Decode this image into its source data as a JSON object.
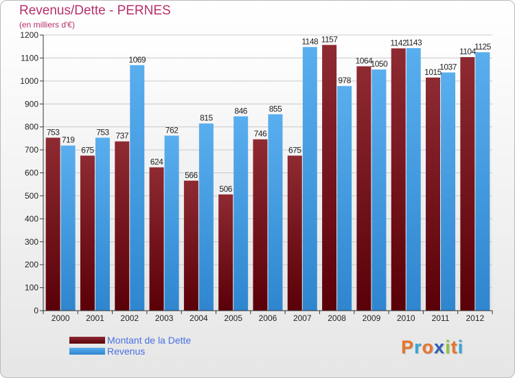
{
  "header": {
    "title": "Revenus/Dette - PERNES",
    "subtitle": "(en milliers d'€)"
  },
  "legend": {
    "items": [
      {
        "label": "Montant de la Dette",
        "color": "#6e0c12"
      },
      {
        "label": "Revenus",
        "color": "#4aa3e8"
      }
    ]
  },
  "logo": {
    "letters": [
      "P",
      "r",
      "o",
      "x",
      "i",
      "t",
      "i"
    ],
    "colors": [
      "#e8742b",
      "#33a7d8",
      "#e8742b",
      "#2d5fb8",
      "#8cc63f",
      "#e8742b",
      "#33a7d8"
    ]
  },
  "chart_data": {
    "type": "bar",
    "title": "Revenus/Dette - PERNES",
    "subtitle": "(en milliers d'€)",
    "categories": [
      "2000",
      "2001",
      "2002",
      "2003",
      "2004",
      "2005",
      "2006",
      "2007",
      "2008",
      "2009",
      "2010",
      "2011",
      "2012"
    ],
    "series": [
      {
        "name": "Montant de la Dette",
        "color": "#7a1a22",
        "values": [
          753,
          675,
          737,
          624,
          566,
          506,
          746,
          675,
          1157,
          1064,
          1142,
          1015,
          1104
        ]
      },
      {
        "name": "Revenus",
        "color": "#4aa3e8",
        "values": [
          719,
          753,
          1069,
          762,
          815,
          846,
          855,
          1148,
          978,
          1050,
          1143,
          1037,
          1125
        ]
      }
    ],
    "yticks": [
      0,
      100,
      200,
      300,
      400,
      500,
      600,
      700,
      800,
      900,
      1000,
      1100,
      1200
    ],
    "ylim": [
      0,
      1200
    ],
    "grid": true,
    "legend_position": "bottom-left"
  }
}
